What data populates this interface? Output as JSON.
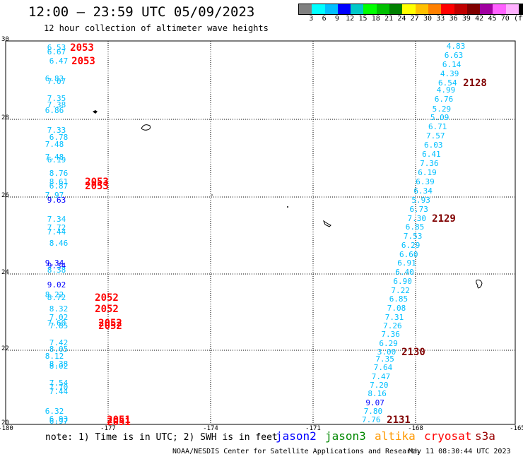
{
  "header": {
    "title": "12:00 – 23:59 UTC 05/09/2023",
    "subtitle": "12 hour collection of altimeter wave heights"
  },
  "legend": {
    "colors": [
      "#808080",
      "#00ffff",
      "#00bfff",
      "#0000ff",
      "#00c8c8",
      "#00ff00",
      "#00c000",
      "#008000",
      "#ffff00",
      "#ffc000",
      "#ff8000",
      "#ff0000",
      "#c00000",
      "#800000",
      "#a000a0",
      "#ff60ff",
      "#ffb0ff",
      "#000000"
    ],
    "labels": [
      "3",
      "6",
      "9",
      "12",
      "15",
      "18",
      "21",
      "24",
      "27",
      "30",
      "33",
      "36",
      "39",
      "42",
      "45",
      "70",
      "(ft)"
    ]
  },
  "axes": {
    "lon_labels": [
      "-180",
      "-177",
      "-174",
      "-171",
      "-168",
      "-165"
    ],
    "lat_labels": [
      "30",
      "28",
      "26",
      "24",
      "22",
      "20"
    ]
  },
  "tracks": [
    {
      "x": 80,
      "labels": [
        [
          "6.53",
          67
        ],
        [
          "6.67",
          73
        ],
        [
          "6.47",
          86
        ],
        [
          "6.83",
          111
        ],
        [
          "7.07",
          115
        ],
        [
          "7.35",
          139
        ],
        [
          "7.38",
          148
        ],
        [
          "6.86",
          156
        ],
        [
          "7.33",
          184
        ],
        [
          "6.78",
          194
        ],
        [
          "7.48",
          204
        ],
        [
          "7.48",
          222
        ],
        [
          "6.19",
          226
        ],
        [
          "8.76",
          245
        ],
        [
          "8.61",
          257
        ],
        [
          "6.87",
          263
        ],
        [
          "7.97",
          276
        ],
        [
          "9.63",
          283
        ],
        [
          "7.34",
          310
        ],
        [
          "7.72",
          322
        ],
        [
          "7.44",
          328
        ],
        [
          "8.46",
          344
        ],
        [
          "9.34",
          372
        ],
        [
          "9.34",
          376
        ],
        [
          "8.38",
          382
        ],
        [
          "9.02",
          403
        ],
        [
          "8.22",
          417
        ],
        [
          "8.72",
          421
        ],
        [
          "8.32",
          437
        ],
        [
          "7.02",
          449
        ],
        [
          "7.60",
          457
        ],
        [
          "7.85",
          461
        ],
        [
          "7.42",
          485
        ],
        [
          "8.05",
          494
        ],
        [
          "8.12",
          504
        ],
        [
          "8.38",
          515
        ],
        [
          "8.02",
          518
        ],
        [
          "7.54",
          542
        ],
        [
          "7.70",
          548
        ],
        [
          "7.44",
          554
        ],
        [
          "6.32",
          582
        ],
        [
          "6.93",
          593
        ],
        [
          "6.97",
          596
        ]
      ]
    },
    {
      "x": 580,
      "labels": [
        [
          "4.83",
          65
        ],
        [
          "6.63",
          78
        ],
        [
          "6.14",
          91
        ],
        [
          "4.39",
          104
        ],
        [
          "6.54",
          117
        ],
        [
          "4.99",
          127
        ],
        [
          "6.76",
          140
        ],
        [
          "5.29",
          154
        ],
        [
          "5.09",
          166
        ],
        [
          "6.71",
          179
        ],
        [
          "7.57",
          192
        ],
        [
          "6.03",
          205
        ],
        [
          "6.41",
          218
        ],
        [
          "7.36",
          231
        ],
        [
          "6.19",
          244
        ],
        [
          "6.39",
          257
        ],
        [
          "6.34",
          270
        ],
        [
          "5.93",
          283
        ],
        [
          "6.73",
          296
        ],
        [
          "7.30",
          309
        ],
        [
          "6.85",
          321
        ],
        [
          "7.53",
          334
        ],
        [
          "6.29",
          347
        ],
        [
          "6.60",
          360
        ],
        [
          "6.91",
          372
        ],
        [
          "6.40",
          385
        ],
        [
          "6.90",
          398
        ],
        [
          "7.22",
          411
        ],
        [
          "6.85",
          423
        ],
        [
          "7.08",
          436
        ],
        [
          "7.31",
          449
        ],
        [
          "7.26",
          461
        ],
        [
          "7.36",
          473
        ],
        [
          "6.29",
          486
        ],
        [
          "3.00",
          498
        ],
        [
          "7.35",
          508
        ],
        [
          "7.64",
          520
        ],
        [
          "7.47",
          533
        ],
        [
          "7.20",
          545
        ],
        [
          "8.16",
          557
        ],
        [
          "9.07",
          570
        ],
        [
          "7.80",
          582
        ],
        [
          "7.76",
          594
        ]
      ]
    }
  ],
  "time_labels": [
    [
      "2053",
      116,
      67,
      "red"
    ],
    [
      "2053",
      118,
      86,
      "red"
    ],
    [
      "2053",
      137,
      257,
      "red"
    ],
    [
      "2053",
      137,
      263,
      "red"
    ],
    [
      "2052",
      151,
      421,
      "red"
    ],
    [
      "2052",
      151,
      437,
      "red"
    ],
    [
      "2052",
      156,
      457,
      "red"
    ],
    [
      "2052",
      156,
      461,
      "red"
    ],
    [
      "2051",
      168,
      594,
      "red"
    ],
    [
      "2051",
      168,
      597,
      "red"
    ],
    [
      "2128",
      672,
      117,
      "dark"
    ],
    [
      "2129",
      628,
      309,
      "dark"
    ],
    [
      "2130",
      585,
      498,
      "dark"
    ],
    [
      "2131",
      564,
      594,
      "dark"
    ]
  ],
  "note": "note: 1) Time is in UTC; 2) SWH is in feet",
  "satellites": [
    {
      "name": "jason2",
      "color": "#0000ff"
    },
    {
      "name": "jason3",
      "color": "#008800"
    },
    {
      "name": "altika",
      "color": "#ff9900"
    },
    {
      "name": "cryosat",
      "color": "#ff0000"
    },
    {
      "name": "s3a",
      "color": "#990000"
    }
  ],
  "footer": "NOAA/NESDIS Center for Satellite Applications and Research",
  "footer_time": "May 11 08:30:44 UTC 2023"
}
